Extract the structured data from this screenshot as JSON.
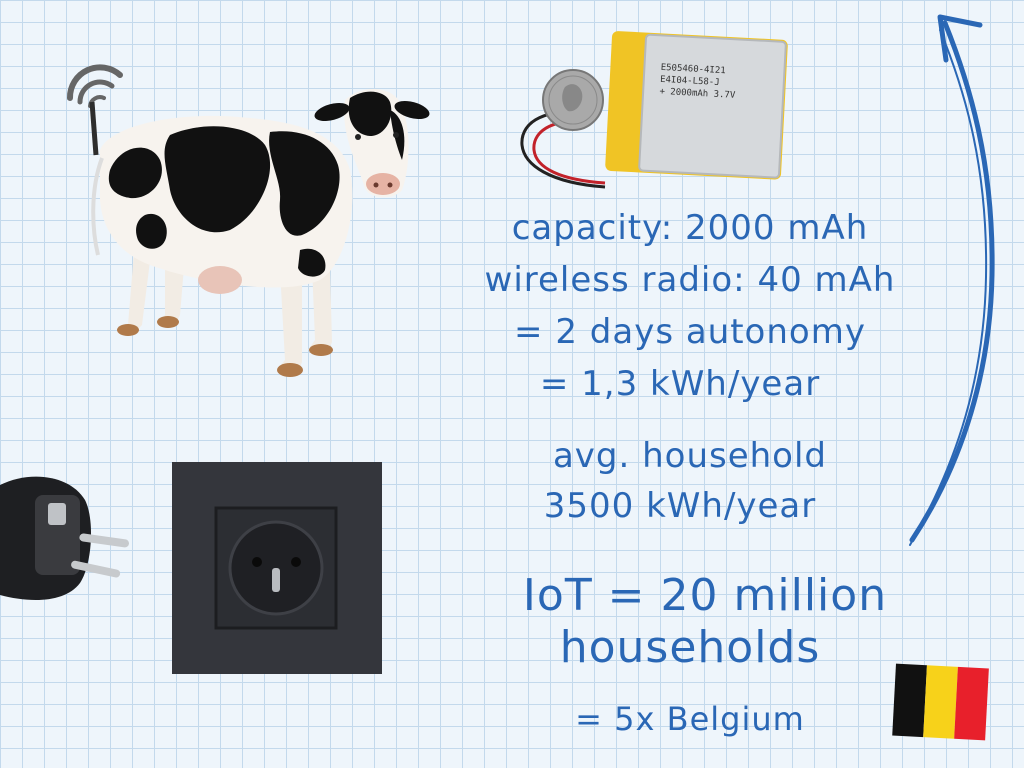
{
  "battery": {
    "label_lines": [
      "E505460-4I21",
      "E4I04-L58-J",
      "+ 2000mAh 3.7V"
    ]
  },
  "notes": {
    "capacity": "capacity: 2000 mAh",
    "radio": "wireless radio: 40 mAh",
    "autonomy": "= 2 days autonomy",
    "yearly": "= 1,3 kWh/year",
    "household_1": "avg. household",
    "household_2": "3500 kWh/year",
    "iot_1": "IoT = 20 million",
    "iot_2": "households",
    "belgium": "= 5x Belgium"
  },
  "colors": {
    "ink": "#2a67b5",
    "grid": "#c3d9ec",
    "paper": "#eef5fb",
    "flag": [
      "#111111",
      "#f7d21a",
      "#e8202b"
    ]
  },
  "icons": [
    "cow",
    "antenna",
    "wifi-signal",
    "lipo-battery",
    "coin",
    "power-plug",
    "wall-socket",
    "belgian-flag",
    "curved-arrow"
  ]
}
